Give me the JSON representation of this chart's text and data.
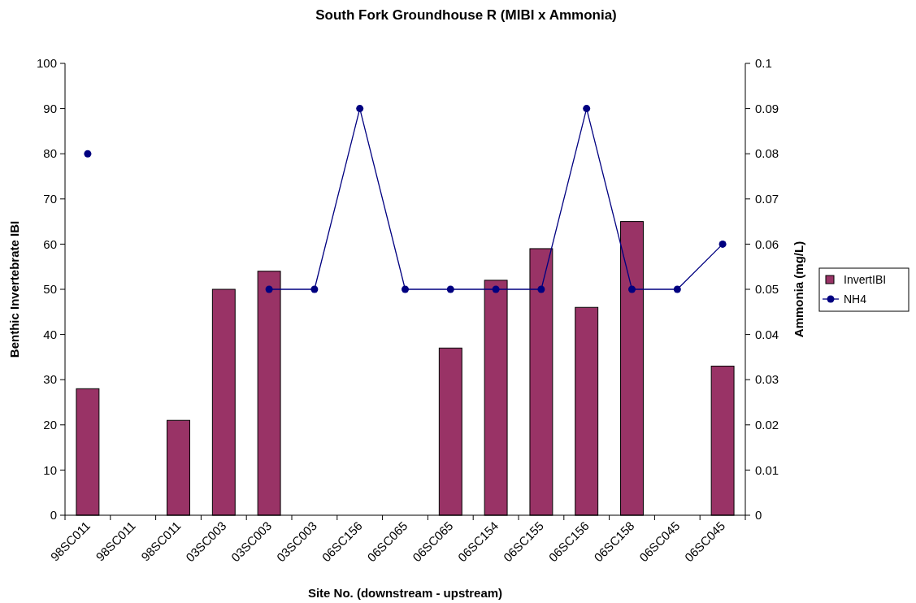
{
  "chart_data": {
    "type": "bar",
    "title": "South Fork Groundhouse R (MIBI x Ammonia)",
    "xlabel": "Site No. (downstream - upstream)",
    "ylabel": "Benthic Invertebrate IBI",
    "y2label": "Ammonia (mg/L)",
    "categories": [
      "98SC011",
      "98SC011",
      "98SC011",
      "03SC003",
      "03SC003",
      "03SC003",
      "06SC156",
      "06SC065",
      "06SC065",
      "06SC154",
      "06SC155",
      "06SC156",
      "06SC158",
      "06SC045",
      "06SC045"
    ],
    "series": [
      {
        "name": "InvertIBI",
        "color": "#993366",
        "values": [
          28,
          null,
          21,
          50,
          54,
          null,
          null,
          null,
          37,
          52,
          59,
          46,
          65,
          null,
          33
        ]
      },
      {
        "name": "NH4",
        "type": "line",
        "axis": "y2",
        "color": "#000080",
        "marker": "circle",
        "values": [
          0.08,
          null,
          null,
          null,
          0.05,
          0.05,
          0.09,
          0.05,
          0.05,
          0.05,
          0.05,
          0.09,
          0.05,
          0.05,
          0.06
        ]
      }
    ],
    "ylim": [
      0,
      100
    ],
    "yticks": [
      0,
      10,
      20,
      30,
      40,
      50,
      60,
      70,
      80,
      90,
      100
    ],
    "y2lim": [
      0,
      0.1
    ],
    "y2ticks": [
      0,
      0.01,
      0.02,
      0.03,
      0.04,
      0.05,
      0.06,
      0.07,
      0.08,
      0.09,
      0.1
    ],
    "grid": false,
    "legend": "right"
  }
}
